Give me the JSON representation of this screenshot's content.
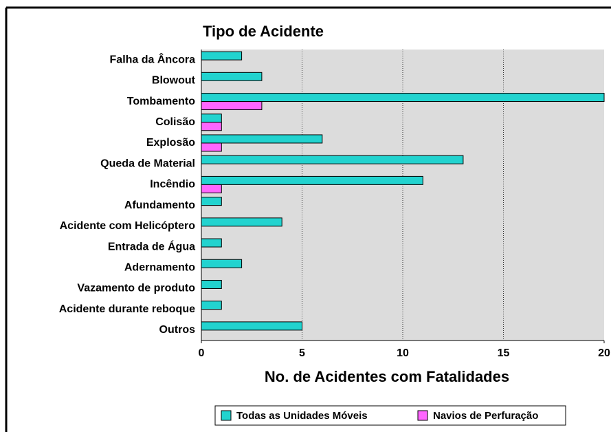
{
  "chart_data": {
    "type": "bar",
    "orientation": "horizontal",
    "title": "Tipo de Acidente",
    "x_label": "No. de Acidentes com Fatalidades",
    "categories": [
      "Falha da Âncora",
      "Blowout",
      "Tombamento",
      "Colisão",
      "Explosão",
      "Queda de Material",
      "Incêndio",
      "Afundamento",
      "Acidente com Helicóptero",
      "Entrada de Água",
      "Adernamento",
      "Vazamento de produto",
      "Acidente durante reboque",
      "Outros"
    ],
    "series": [
      {
        "name": "Todas as Unidades Móveis",
        "color": "#22d3cf",
        "values": [
          2,
          3,
          20,
          1,
          6,
          13,
          11,
          1,
          4,
          1,
          2,
          1,
          1,
          5
        ]
      },
      {
        "name": "Navios de Perfuração",
        "color": "#ff66ff",
        "values": [
          null,
          null,
          3,
          1,
          1,
          null,
          1,
          null,
          null,
          null,
          null,
          null,
          null,
          null
        ]
      }
    ],
    "xlim": [
      0,
      20
    ],
    "xticks": [
      0,
      5,
      10,
      15,
      20
    ],
    "grid": true,
    "legend": "bottom"
  }
}
